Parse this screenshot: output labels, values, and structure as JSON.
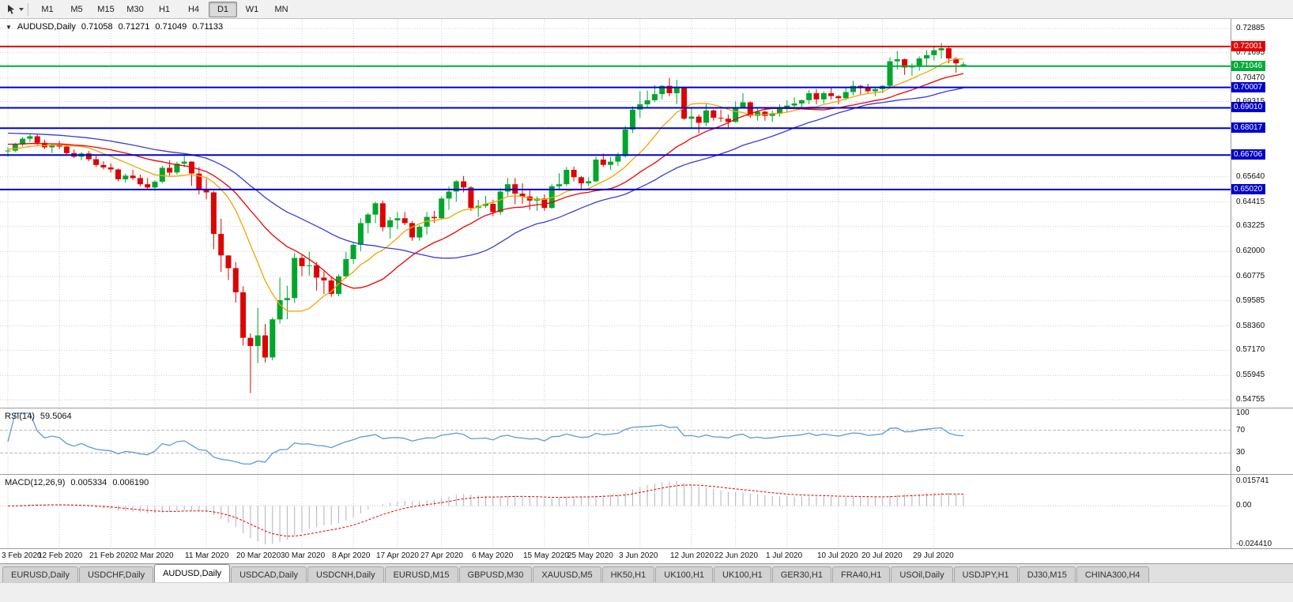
{
  "toolbar": {
    "timeframes": [
      "M1",
      "M5",
      "M15",
      "M30",
      "H1",
      "H4",
      "D1",
      "W1",
      "MN"
    ],
    "active_timeframe": "D1"
  },
  "chart_header": {
    "dropdown_glyph": "▼",
    "symbol": "AUDUSD,Daily",
    "open": "0.71058",
    "high": "0.71271",
    "low": "0.71049",
    "close": "0.71133"
  },
  "rsi": {
    "label": "RSI(14)",
    "value": "59.5064",
    "axis_labels": [
      "100",
      "70",
      "30",
      "0"
    ],
    "levels": [
      70,
      30
    ]
  },
  "macd": {
    "label": "MACD(12,26,9)",
    "value_main": "0.005334",
    "value_signal": "0.006190",
    "axis_max": "0.015741",
    "axis_zero": "0.00",
    "axis_min": "-0.024410"
  },
  "tabs": {
    "items": [
      "EURUSD,Daily",
      "USDCHF,Daily",
      "AUDUSD,Daily",
      "USDCAD,Daily",
      "USDCNH,Daily",
      "EURUSD,M15",
      "GBPUSD,M30",
      "XAUUSD,M5",
      "HK50,H1",
      "UK100,H1",
      "UK100,H1",
      "GER30,H1",
      "FRA40,H1",
      "USOil,Daily",
      "USDJPY,H1",
      "DJ30,M15",
      "CHINA300,H4"
    ],
    "active_index": 2
  },
  "colors": {
    "bull": "#00a62c",
    "bear": "#dd0404",
    "ma_fast": "#f0a500",
    "ma_mid": "#f00000",
    "ma_slow": "#3b3bd4",
    "hline_blue": "#0000c8",
    "hline_red": "#e60000",
    "hline_green": "#00ab37",
    "rsi_line": "#5b9bd5",
    "macd_bars": "#b2b2ba",
    "macd_signal": "#e00000",
    "grid": "#cdcdcd"
  },
  "chart_data": {
    "type": "candlestick",
    "symbol": "AUDUSD",
    "timeframe": "Daily",
    "y_axis_ticks": [
      "0.72885",
      "0.71695",
      "0.70470",
      "0.69315",
      "0.65640",
      "0.64415",
      "0.63225",
      "0.62000",
      "0.60775",
      "0.59585",
      "0.58360",
      "0.57170",
      "0.55945",
      "0.54755"
    ],
    "horizontal_lines": [
      {
        "label": "0.72001",
        "price": 0.72001,
        "color": "#e60000"
      },
      {
        "label": "0.71046",
        "price": 0.71046,
        "color": "#00ab37"
      },
      {
        "label": "0.70007",
        "price": 0.70007,
        "color": "#0000c8"
      },
      {
        "label": "0.69010",
        "price": 0.6901,
        "color": "#0000c8"
      },
      {
        "label": "0.68017",
        "price": 0.68017,
        "color": "#0000c8"
      },
      {
        "label": "0.66706",
        "price": 0.66706,
        "color": "#0000c8"
      },
      {
        "label": "0.65020",
        "price": 0.6502,
        "color": "#0000c8"
      }
    ],
    "moving_averages": [
      {
        "period": 10,
        "color": "#f0a500",
        "seed": 0.67
      },
      {
        "period": 20,
        "color": "#f00000",
        "seed": 0.6725
      },
      {
        "period": 34,
        "color": "#3b3bd4",
        "seed": 0.678
      }
    ],
    "indicators": [
      {
        "name": "RSI",
        "period": 14,
        "last": "59.5064"
      },
      {
        "name": "MACD",
        "fast": 12,
        "slow": 26,
        "signal": 9,
        "last_main": "0.005334",
        "last_signal": "0.006190"
      }
    ],
    "x_axis_dates": [
      {
        "label": "3 Feb 2020",
        "i": 0
      },
      {
        "label": "12 Feb 2020",
        "i": 7
      },
      {
        "label": "21 Feb 2020",
        "i": 14
      },
      {
        "label": "2 Mar 2020",
        "i": 20
      },
      {
        "label": "11 Mar 2020",
        "i": 27
      },
      {
        "label": "20 Mar 2020",
        "i": 34
      },
      {
        "label": "30 Mar 2020",
        "i": 40
      },
      {
        "label": "8 Apr 2020",
        "i": 47
      },
      {
        "label": "17 Apr 2020",
        "i": 53
      },
      {
        "label": "27 Apr 2020",
        "i": 59
      },
      {
        "label": "6 May 2020",
        "i": 66
      },
      {
        "label": "15 May 2020",
        "i": 73
      },
      {
        "label": "25 May 2020",
        "i": 79
      },
      {
        "label": "3 Jun 2020",
        "i": 86
      },
      {
        "label": "12 Jun 2020",
        "i": 93
      },
      {
        "label": "22 Jun 2020",
        "i": 99
      },
      {
        "label": "1 Jul 2020",
        "i": 106
      },
      {
        "label": "10 Jul 2020",
        "i": 113
      },
      {
        "label": "20 Jul 2020",
        "i": 119
      },
      {
        "label": "29 Jul 2020",
        "i": 126
      }
    ],
    "ohlc": [
      [
        0.669,
        0.671,
        0.6662,
        0.6692
      ],
      [
        0.6692,
        0.673,
        0.6685,
        0.6722
      ],
      [
        0.6722,
        0.6758,
        0.6712,
        0.675
      ],
      [
        0.675,
        0.6775,
        0.6735,
        0.6762
      ],
      [
        0.6762,
        0.677,
        0.672,
        0.673
      ],
      [
        0.673,
        0.6745,
        0.67,
        0.6708
      ],
      [
        0.6708,
        0.6725,
        0.668,
        0.6718
      ],
      [
        0.6718,
        0.674,
        0.67,
        0.6712
      ],
      [
        0.6712,
        0.672,
        0.667,
        0.668
      ],
      [
        0.668,
        0.6698,
        0.6655,
        0.6662
      ],
      [
        0.6662,
        0.6685,
        0.6645,
        0.6678
      ],
      [
        0.6678,
        0.669,
        0.664,
        0.665
      ],
      [
        0.665,
        0.6665,
        0.6612,
        0.6622
      ],
      [
        0.6622,
        0.664,
        0.66,
        0.661
      ],
      [
        0.661,
        0.663,
        0.6585,
        0.66
      ],
      [
        0.66,
        0.6605,
        0.6542,
        0.6552
      ],
      [
        0.6552,
        0.658,
        0.6535,
        0.657
      ],
      [
        0.657,
        0.6598,
        0.6548,
        0.6558
      ],
      [
        0.6558,
        0.6575,
        0.6518,
        0.6528
      ],
      [
        0.6528,
        0.6558,
        0.6505,
        0.6512
      ],
      [
        0.6512,
        0.6548,
        0.6495,
        0.654
      ],
      [
        0.654,
        0.6618,
        0.6532,
        0.6608
      ],
      [
        0.6608,
        0.6645,
        0.657,
        0.6585
      ],
      [
        0.6585,
        0.6638,
        0.6575,
        0.6628
      ],
      [
        0.6628,
        0.6672,
        0.6612,
        0.6638
      ],
      [
        0.6638,
        0.664,
        0.652,
        0.658
      ],
      [
        0.658,
        0.6612,
        0.6478,
        0.65
      ],
      [
        0.65,
        0.6555,
        0.6455,
        0.6488
      ],
      [
        0.6488,
        0.6495,
        0.621,
        0.6285
      ],
      [
        0.6285,
        0.636,
        0.61,
        0.618
      ],
      [
        0.618,
        0.6182,
        0.606,
        0.6118
      ],
      [
        0.6118,
        0.6148,
        0.595,
        0.6
      ],
      [
        0.6,
        0.603,
        0.574,
        0.5778
      ],
      [
        0.5778,
        0.58,
        0.5508,
        0.5738
      ],
      [
        0.5738,
        0.5925,
        0.5655,
        0.579
      ],
      [
        0.579,
        0.5845,
        0.5658,
        0.5682
      ],
      [
        0.5682,
        0.5878,
        0.5668,
        0.5868
      ],
      [
        0.5868,
        0.6072,
        0.5848,
        0.5962
      ],
      [
        0.5962,
        0.6032,
        0.5868,
        0.5972
      ],
      [
        0.5972,
        0.6192,
        0.5948,
        0.6168
      ],
      [
        0.6168,
        0.6182,
        0.6078,
        0.6128
      ],
      [
        0.6128,
        0.6198,
        0.6082,
        0.6132
      ],
      [
        0.6132,
        0.6148,
        0.6008,
        0.6072
      ],
      [
        0.6072,
        0.6102,
        0.5992,
        0.6058
      ],
      [
        0.6058,
        0.6072,
        0.5978,
        0.5992
      ],
      [
        0.5992,
        0.6088,
        0.5982,
        0.6078
      ],
      [
        0.6078,
        0.6198,
        0.6068,
        0.6162
      ],
      [
        0.6162,
        0.6248,
        0.6138,
        0.6232
      ],
      [
        0.6232,
        0.6362,
        0.6202,
        0.6338
      ],
      [
        0.6338,
        0.6388,
        0.6288,
        0.638
      ],
      [
        0.638,
        0.6442,
        0.6338,
        0.6435
      ],
      [
        0.6435,
        0.6448,
        0.6298,
        0.6318
      ],
      [
        0.6318,
        0.6368,
        0.6262,
        0.6352
      ],
      [
        0.6352,
        0.6392,
        0.6308,
        0.6362
      ],
      [
        0.6362,
        0.6392,
        0.6328,
        0.6338
      ],
      [
        0.6338,
        0.6348,
        0.6252,
        0.6268
      ],
      [
        0.6268,
        0.6328,
        0.6252,
        0.632
      ],
      [
        0.632,
        0.6392,
        0.6282,
        0.6368
      ],
      [
        0.6368,
        0.6398,
        0.6338,
        0.6362
      ],
      [
        0.6362,
        0.6468,
        0.6358,
        0.6458
      ],
      [
        0.6458,
        0.6518,
        0.6402,
        0.6492
      ],
      [
        0.6492,
        0.6548,
        0.6442,
        0.6542
      ],
      [
        0.6542,
        0.6568,
        0.6488,
        0.6512
      ],
      [
        0.6512,
        0.6518,
        0.6398,
        0.6412
      ],
      [
        0.6412,
        0.6452,
        0.6368,
        0.6422
      ],
      [
        0.6422,
        0.6472,
        0.6412,
        0.6432
      ],
      [
        0.6432,
        0.6452,
        0.6372,
        0.6392
      ],
      [
        0.6392,
        0.6508,
        0.6378,
        0.6492
      ],
      [
        0.6492,
        0.6558,
        0.6472,
        0.6528
      ],
      [
        0.6528,
        0.6558,
        0.643,
        0.6482
      ],
      [
        0.6482,
        0.6532,
        0.6432,
        0.6468
      ],
      [
        0.6468,
        0.6502,
        0.6402,
        0.6448
      ],
      [
        0.6448,
        0.6468,
        0.6398,
        0.6458
      ],
      [
        0.6458,
        0.6478,
        0.6398,
        0.6412
      ],
      [
        0.6412,
        0.6528,
        0.6408,
        0.6518
      ],
      [
        0.6518,
        0.6582,
        0.6502,
        0.6528
      ],
      [
        0.6528,
        0.6612,
        0.6518,
        0.6598
      ],
      [
        0.6598,
        0.6614,
        0.6542,
        0.6562
      ],
      [
        0.6562,
        0.6568,
        0.6502,
        0.6532
      ],
      [
        0.6532,
        0.6562,
        0.6518,
        0.6542
      ],
      [
        0.6542,
        0.6662,
        0.6538,
        0.6648
      ],
      [
        0.6648,
        0.6678,
        0.6612,
        0.6622
      ],
      [
        0.6622,
        0.6662,
        0.6598,
        0.6638
      ],
      [
        0.6638,
        0.6682,
        0.6618,
        0.6665
      ],
      [
        0.6665,
        0.6812,
        0.6658,
        0.6795
      ],
      [
        0.6795,
        0.6908,
        0.6778,
        0.6892
      ],
      [
        0.6892,
        0.6982,
        0.6852,
        0.6918
      ],
      [
        0.6918,
        0.6985,
        0.6898,
        0.6938
      ],
      [
        0.6938,
        0.7012,
        0.6928,
        0.6968
      ],
      [
        0.6968,
        0.7012,
        0.6942,
        0.7008
      ],
      [
        0.7008,
        0.7047,
        0.6958,
        0.6972
      ],
      [
        0.6972,
        0.7038,
        0.6918,
        0.6998
      ],
      [
        0.6998,
        0.7002,
        0.6842,
        0.6848
      ],
      [
        0.6848,
        0.6902,
        0.6798,
        0.6858
      ],
      [
        0.6858,
        0.6868,
        0.6776,
        0.6828
      ],
      [
        0.6828,
        0.6922,
        0.6812,
        0.6888
      ],
      [
        0.6888,
        0.6892,
        0.6838,
        0.6852
      ],
      [
        0.6852,
        0.6892,
        0.6832,
        0.6848
      ],
      [
        0.6848,
        0.6868,
        0.6802,
        0.6832
      ],
      [
        0.6832,
        0.6932,
        0.6828,
        0.6902
      ],
      [
        0.6902,
        0.6972,
        0.6898,
        0.6928
      ],
      [
        0.6928,
        0.6932,
        0.6852,
        0.6862
      ],
      [
        0.6862,
        0.6898,
        0.6838,
        0.6882
      ],
      [
        0.6882,
        0.6888,
        0.6838,
        0.6862
      ],
      [
        0.6862,
        0.6888,
        0.6832,
        0.6872
      ],
      [
        0.6872,
        0.6918,
        0.6858,
        0.6898
      ],
      [
        0.6898,
        0.6938,
        0.6878,
        0.6912
      ],
      [
        0.6912,
        0.6952,
        0.6902,
        0.6922
      ],
      [
        0.6922,
        0.6942,
        0.6902,
        0.6938
      ],
      [
        0.6938,
        0.6988,
        0.6918,
        0.6972
      ],
      [
        0.6972,
        0.6992,
        0.6918,
        0.6942
      ],
      [
        0.6942,
        0.6982,
        0.6922,
        0.6972
      ],
      [
        0.6972,
        0.6998,
        0.6942,
        0.6958
      ],
      [
        0.6958,
        0.6962,
        0.6918,
        0.6948
      ],
      [
        0.6948,
        0.6998,
        0.6938,
        0.6978
      ],
      [
        0.6978,
        0.7032,
        0.6962,
        0.7008
      ],
      [
        0.7008,
        0.7012,
        0.6962,
        0.7002
      ],
      [
        0.7002,
        0.7018,
        0.6968,
        0.6982
      ],
      [
        0.6982,
        0.7002,
        0.6958,
        0.6992
      ],
      [
        0.6992,
        0.7012,
        0.6972,
        0.7008
      ],
      [
        0.7008,
        0.7148,
        0.6998,
        0.7128
      ],
      [
        0.7128,
        0.7178,
        0.7088,
        0.7138
      ],
      [
        0.7138,
        0.7142,
        0.7062,
        0.7098
      ],
      [
        0.7098,
        0.7118,
        0.7058,
        0.7102
      ],
      [
        0.7102,
        0.7152,
        0.7082,
        0.7142
      ],
      [
        0.7142,
        0.7182,
        0.7108,
        0.7158
      ],
      [
        0.7158,
        0.7198,
        0.7132,
        0.7182
      ],
      [
        0.7182,
        0.7218,
        0.7142,
        0.7192
      ],
      [
        0.7192,
        0.7202,
        0.7118,
        0.7142
      ],
      [
        0.7142,
        0.7148,
        0.7072,
        0.7118
      ],
      [
        0.7106,
        0.7127,
        0.7105,
        0.7113
      ]
    ]
  }
}
